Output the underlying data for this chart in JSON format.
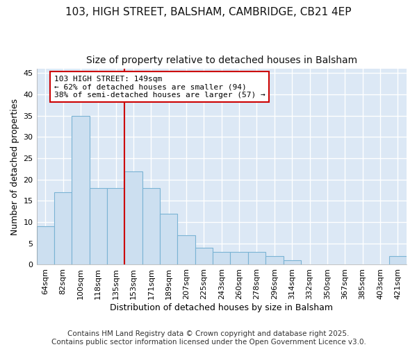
{
  "title1": "103, HIGH STREET, BALSHAM, CAMBRIDGE, CB21 4EP",
  "title2": "Size of property relative to detached houses in Balsham",
  "xlabel": "Distribution of detached houses by size in Balsham",
  "ylabel": "Number of detached properties",
  "categories": [
    "64sqm",
    "82sqm",
    "100sqm",
    "118sqm",
    "135sqm",
    "153sqm",
    "171sqm",
    "189sqm",
    "207sqm",
    "225sqm",
    "243sqm",
    "260sqm",
    "278sqm",
    "296sqm",
    "314sqm",
    "332sqm",
    "350sqm",
    "367sqm",
    "385sqm",
    "403sqm",
    "421sqm"
  ],
  "values": [
    9,
    17,
    35,
    18,
    18,
    22,
    18,
    12,
    7,
    4,
    3,
    3,
    3,
    2,
    1,
    0,
    0,
    0,
    0,
    0,
    2
  ],
  "bar_color": "#ccdff0",
  "bar_edgecolor": "#7ab3d4",
  "background_color": "#dce8f5",
  "grid_color": "#ffffff",
  "redline_x": 5,
  "redline_label": "103 HIGH STREET: 149sqm",
  "redline_text1": "← 62% of detached houses are smaller (94)",
  "redline_text2": "38% of semi-detached houses are larger (57) →",
  "redline_color": "#cc0000",
  "annotation_box_edgecolor": "#cc0000",
  "ylim": [
    0,
    46
  ],
  "yticks": [
    0,
    5,
    10,
    15,
    20,
    25,
    30,
    35,
    40,
    45
  ],
  "footer": "Contains HM Land Registry data © Crown copyright and database right 2025.\nContains public sector information licensed under the Open Government Licence v3.0.",
  "title_fontsize": 11,
  "subtitle_fontsize": 10,
  "axis_fontsize": 9,
  "tick_fontsize": 8,
  "footer_fontsize": 7.5
}
